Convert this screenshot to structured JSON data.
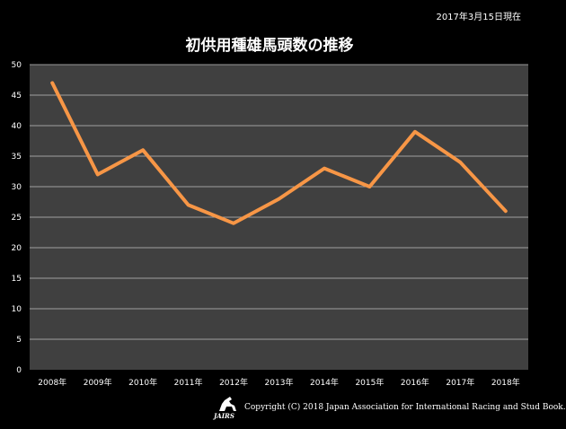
{
  "header": {
    "date_note": "2017年3月15日現在"
  },
  "footer": {
    "logo_text": "JAIRS",
    "copyright": "Copyright (C) 2018 Japan Association for International Racing and Stud Book."
  },
  "colors": {
    "background": "#000000",
    "plot_bg": "#404040",
    "grid": "#bfbfbf",
    "line": "#f79646"
  },
  "chart_data": {
    "type": "line",
    "title": "初供用種雄馬頭数の推移",
    "categories": [
      "2008年",
      "2009年",
      "2010年",
      "2011年",
      "2012年",
      "2013年",
      "2014年",
      "2015年",
      "2016年",
      "2017年",
      "2018年"
    ],
    "series": [
      {
        "values": [
          47,
          32,
          36,
          27,
          24,
          28,
          33,
          30,
          39,
          34,
          26
        ]
      }
    ],
    "ylim": [
      0,
      50
    ],
    "yticks": [
      0,
      5,
      10,
      15,
      20,
      25,
      30,
      35,
      40,
      45,
      50
    ],
    "grid": true,
    "legend": "none"
  }
}
